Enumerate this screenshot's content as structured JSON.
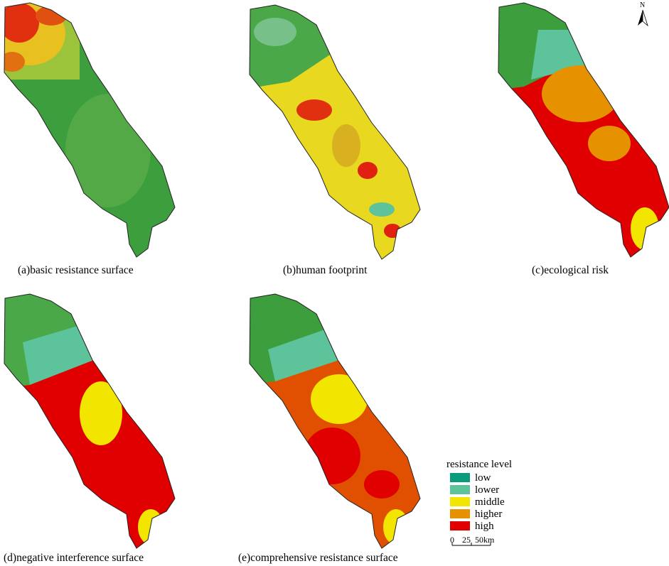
{
  "panels": [
    {
      "caption": "(a)basic resistance surface"
    },
    {
      "caption": "(b)human footprint"
    },
    {
      "caption": "(c)ecological risk"
    },
    {
      "caption": "(d)negative interference surface"
    },
    {
      "caption": "(e)comprehensive  resistance surface"
    }
  ],
  "legend": {
    "title": "resistance level",
    "items": [
      {
        "label": "low",
        "color": "#0a9b7c"
      },
      {
        "label": "lower",
        "color": "#5dc39b"
      },
      {
        "label": "middle",
        "color": "#f2e600"
      },
      {
        "label": "higher",
        "color": "#e69200"
      },
      {
        "label": "high",
        "color": "#e00000"
      }
    ]
  },
  "scale_bar": {
    "labels": [
      "0",
      "25",
      "50km"
    ]
  },
  "north_arrow": "N"
}
